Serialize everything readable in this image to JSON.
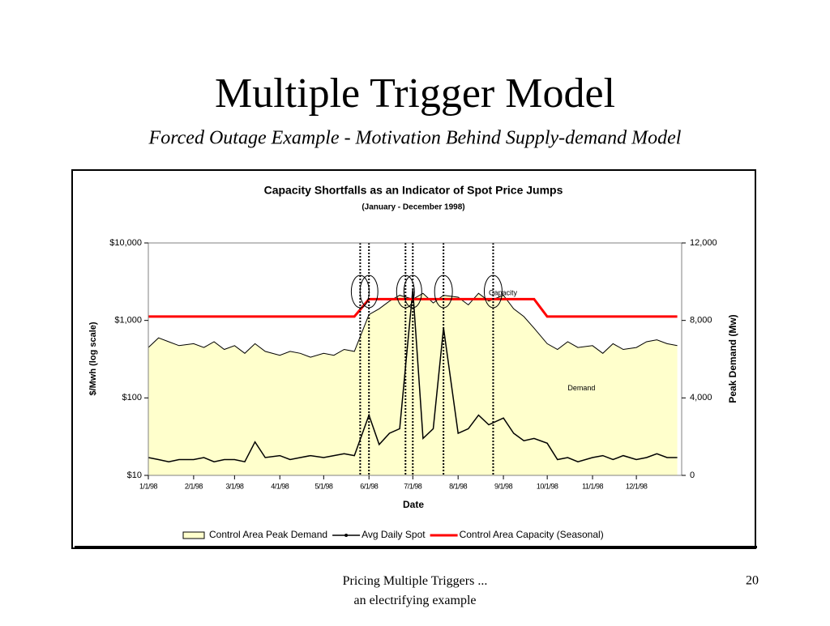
{
  "slide": {
    "title": "Multiple Trigger Model",
    "subtitle": "Forced Outage Example - Motivation Behind Supply-demand Model",
    "footer": "Pricing Multiple Triggers ... an electrifying example",
    "page": "20"
  },
  "chart_data": {
    "type": "line",
    "title": "Capacity Shortfalls as an Indicator of Spot Price Jumps",
    "subtitle": "(January - December 1998)",
    "x_label": "Date",
    "y_label": "$/Mwh (log scale)",
    "y2_label": "Peak Demand (Mw)",
    "x": [
      "1/1/98",
      "1/8/98",
      "1/15/98",
      "1/22/98",
      "2/1/98",
      "2/8/98",
      "2/15/98",
      "2/22/98",
      "3/1/98",
      "3/8/98",
      "3/15/98",
      "3/22/98",
      "4/1/98",
      "4/8/98",
      "4/15/98",
      "4/22/98",
      "5/1/98",
      "5/8/98",
      "5/15/98",
      "5/22/98",
      "6/1/98",
      "6/8/98",
      "6/15/98",
      "6/22/98",
      "7/1/98",
      "7/8/98",
      "7/15/98",
      "7/22/98",
      "8/1/98",
      "8/8/98",
      "8/15/98",
      "8/22/98",
      "9/1/98",
      "9/8/98",
      "9/15/98",
      "9/22/98",
      "10/1/98",
      "10/8/98",
      "10/15/98",
      "10/22/98",
      "11/1/98",
      "11/8/98",
      "11/15/98",
      "11/22/98",
      "12/1/98",
      "12/8/98",
      "12/15/98",
      "12/22/98",
      "12/29/98"
    ],
    "xticks": [
      "1/1/98",
      "2/1/98",
      "3/1/98",
      "4/1/98",
      "5/1/98",
      "6/1/98",
      "7/1/98",
      "8/1/98",
      "9/1/98",
      "10/1/98",
      "11/1/98",
      "12/1/98"
    ],
    "ylim": [
      10,
      10000
    ],
    "log_y": true,
    "yticks": [
      {
        "value": 10,
        "label": "$10"
      },
      {
        "value": 100,
        "label": "$100"
      },
      {
        "value": 1000,
        "label": "$1,000"
      },
      {
        "value": 10000,
        "label": "$10,000"
      }
    ],
    "y2lim": [
      0,
      12000
    ],
    "y2ticks": [
      0,
      {
        "value": 4000,
        "label": "4,000"
      },
      {
        "value": 8000,
        "label": "8,000"
      },
      {
        "value": 12000,
        "label": "12,000"
      }
    ],
    "series": [
      {
        "name": "Control Area Peak Demand",
        "kind": "area",
        "axis": "y2",
        "color": "#ffffcc",
        "values": [
          6600,
          7100,
          6900,
          6700,
          6800,
          6600,
          6900,
          6500,
          6700,
          6300,
          6800,
          6400,
          6200,
          6400,
          6300,
          6100,
          6300,
          6200,
          6500,
          6400,
          8300,
          8600,
          9000,
          9300,
          9100,
          9400,
          8900,
          9300,
          9200,
          8800,
          9400,
          9000,
          9300,
          8600,
          8200,
          7600,
          6800,
          6500,
          6900,
          6600,
          6700,
          6300,
          6800,
          6500,
          6600,
          6900,
          7000,
          6800,
          6700
        ]
      },
      {
        "name": "Avg Daily Spot",
        "kind": "line",
        "axis": "y",
        "color": "#000000",
        "values": [
          17,
          16,
          15,
          16,
          16,
          17,
          15,
          16,
          16,
          15,
          27,
          17,
          18,
          16,
          17,
          18,
          17,
          18,
          19,
          18,
          60,
          25,
          35,
          40,
          2500,
          30,
          40,
          800,
          35,
          40,
          60,
          45,
          55,
          35,
          28,
          30,
          26,
          16,
          17,
          15,
          17,
          18,
          16,
          18,
          16,
          17,
          19,
          17,
          17
        ]
      },
      {
        "name": "Control Area Capacity (Seasonal)",
        "kind": "line",
        "axis": "y2",
        "color": "#ff0000",
        "values": [
          8200,
          8200,
          8200,
          8200,
          8200,
          8200,
          8200,
          8200,
          8200,
          8200,
          8200,
          8200,
          8200,
          8200,
          8200,
          8200,
          8200,
          8200,
          8200,
          8200,
          9100,
          9100,
          9100,
          9100,
          9100,
          9100,
          9100,
          9100,
          9100,
          9100,
          9100,
          9100,
          9100,
          9100,
          9100,
          9100,
          8200,
          8200,
          8200,
          8200,
          8200,
          8200,
          8200,
          8200,
          8200,
          8200,
          8200,
          8200,
          8200
        ]
      }
    ],
    "annotations": [
      {
        "text": "Capacity",
        "x": "8/22/98",
        "y2": 9400
      },
      {
        "text": "Demand",
        "x": "10/15/98",
        "y2": 4500
      }
    ],
    "markers": [
      "5/26/98",
      "6/1/98",
      "6/26/98",
      "7/1/98",
      "7/22/98",
      "8/25/98"
    ],
    "legend": "bottom"
  }
}
